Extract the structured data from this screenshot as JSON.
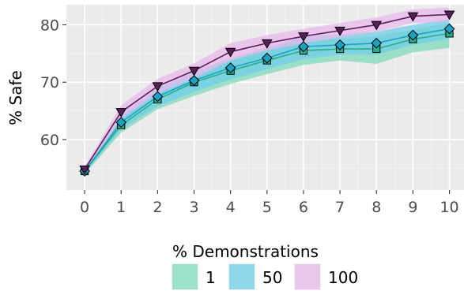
{
  "chart_data": {
    "type": "line",
    "title": "",
    "xlabel": "",
    "ylabel": "% Safe",
    "xlim": [
      -0.5,
      10.4
    ],
    "ylim": [
      51.2,
      83.5
    ],
    "x_ticks": [
      "0",
      "1",
      "2",
      "3",
      "4",
      "5",
      "6",
      "7",
      "8",
      "9",
      "10"
    ],
    "y_ticks": [
      "60",
      "70",
      "80"
    ],
    "y_tick_values": [
      60,
      70,
      80
    ],
    "grid": true,
    "legend_position": "bottom",
    "legend_title": "% Demonstrations",
    "series": [
      {
        "name": "1",
        "color": "#2aae8a",
        "fill": "#7fd9b9",
        "marker": "square",
        "x": [
          0,
          1,
          2,
          3,
          4,
          5,
          6,
          7,
          8,
          9,
          10
        ],
        "y": [
          54.5,
          62.5,
          67.0,
          70.0,
          72.0,
          73.8,
          75.5,
          75.8,
          75.8,
          77.5,
          78.5
        ],
        "lower": [
          54.0,
          61.2,
          65.3,
          67.6,
          69.7,
          71.4,
          73.0,
          73.8,
          73.2,
          75.2,
          76.0
        ],
        "upper": [
          55.0,
          63.8,
          68.6,
          71.5,
          73.8,
          75.8,
          77.5,
          77.5,
          78.0,
          79.2,
          80.3
        ]
      },
      {
        "name": "50",
        "color": "#1aa3c0",
        "fill": "#6fcde9",
        "marker": "diamond",
        "x": [
          0,
          1,
          2,
          3,
          4,
          5,
          6,
          7,
          8,
          9,
          10
        ],
        "y": [
          54.5,
          63.0,
          67.5,
          70.3,
          72.5,
          74.2,
          76.2,
          76.5,
          76.8,
          78.2,
          79.3
        ],
        "lower": [
          54.0,
          61.8,
          65.8,
          68.3,
          70.5,
          72.3,
          74.0,
          74.8,
          74.8,
          76.5,
          77.6
        ],
        "upper": [
          55.0,
          64.2,
          69.0,
          71.8,
          74.2,
          76.0,
          78.0,
          78.3,
          78.8,
          80.0,
          81.0
        ]
      },
      {
        "name": "100",
        "color": "#5a1f5a",
        "fill": "#e8b8ec",
        "marker": "triangle-down",
        "x": [
          0,
          1,
          2,
          3,
          4,
          5,
          6,
          7,
          8,
          9,
          10
        ],
        "y": [
          54.8,
          64.8,
          69.3,
          72.0,
          75.3,
          76.8,
          78.0,
          79.0,
          80.0,
          81.5,
          81.8
        ],
        "lower": [
          54.3,
          63.6,
          68.0,
          70.7,
          73.8,
          75.5,
          76.8,
          77.8,
          78.8,
          80.3,
          80.6
        ],
        "upper": [
          55.3,
          66.0,
          70.6,
          73.3,
          76.8,
          78.2,
          79.3,
          80.3,
          81.3,
          82.7,
          83.0
        ]
      }
    ]
  }
}
